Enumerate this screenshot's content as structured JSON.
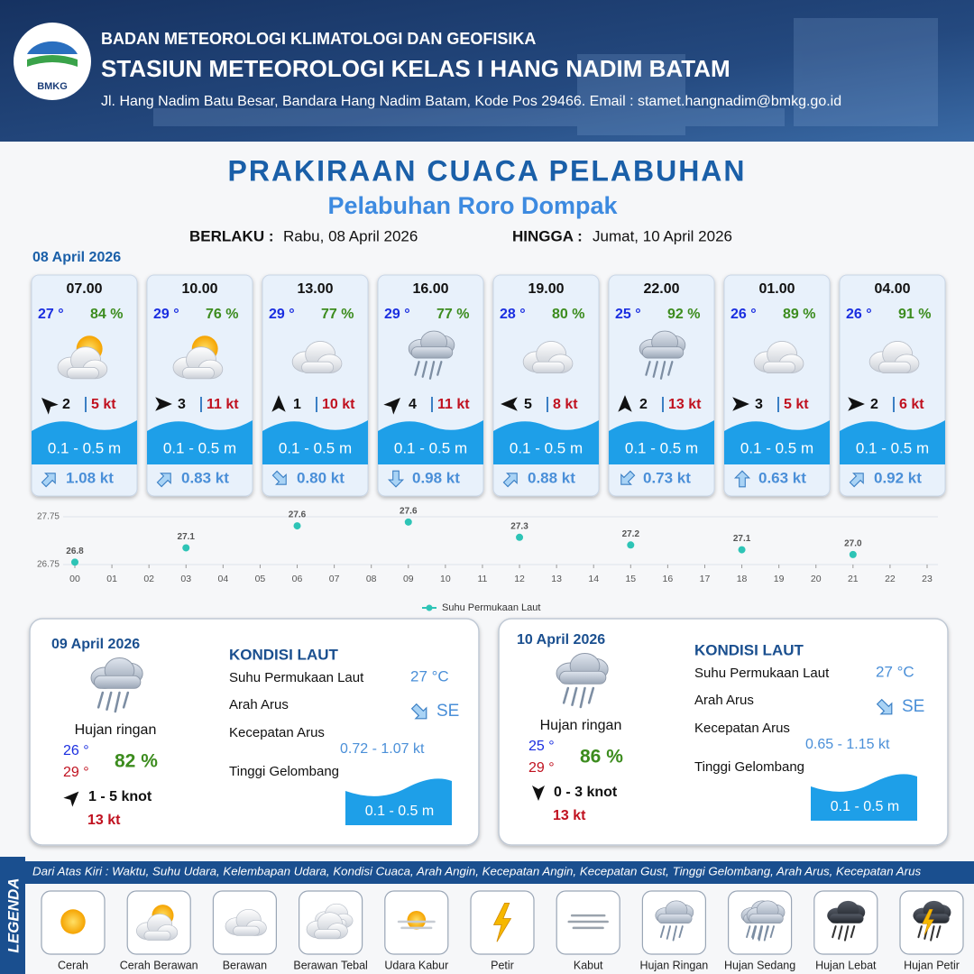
{
  "header": {
    "logo_text": "BMKG",
    "agency": "BADAN METEOROLOGI KLIMATOLOGI DAN GEOFISIKA",
    "station": "STASIUN METEOROLOGI KELAS I HANG NADIM BATAM",
    "address": "Jl. Hang Nadim Batu Besar, Bandara Hang Nadim Batam, Kode Pos 29466. Email : stamet.hangnadim@bmkg.go.id"
  },
  "title": "PRAKIRAAN CUACA PELABUHAN",
  "subtitle": "Pelabuhan Roro Dompak",
  "validity": {
    "from_label": "BERLAKU :",
    "from": "Rabu, 08 April 2026",
    "to_label": "HINGGA :",
    "to": "Jumat, 10 April 2026"
  },
  "today": "08 April 2026",
  "forecasts": [
    {
      "time": "07.00",
      "temp": "27 °",
      "humidity": "84 %",
      "wind": "2",
      "gust": "5 kt",
      "wave": "0.1 - 0.5 m",
      "current": "1.08 kt"
    },
    {
      "time": "10.00",
      "temp": "29 °",
      "humidity": "76 %",
      "wind": "3",
      "gust": "11 kt",
      "wave": "0.1 - 0.5 m",
      "current": "0.83 kt"
    },
    {
      "time": "13.00",
      "temp": "29 °",
      "humidity": "77 %",
      "wind": "1",
      "gust": "10 kt",
      "wave": "0.1 - 0.5 m",
      "current": "0.80 kt"
    },
    {
      "time": "16.00",
      "temp": "29 °",
      "humidity": "77 %",
      "wind": "4",
      "gust": "11 kt",
      "wave": "0.1 - 0.5 m",
      "current": "0.98 kt"
    },
    {
      "time": "19.00",
      "temp": "28 °",
      "humidity": "80 %",
      "wind": "5",
      "gust": "8 kt",
      "wave": "0.1 - 0.5 m",
      "current": "0.88 kt"
    },
    {
      "time": "22.00",
      "temp": "25 °",
      "humidity": "92 %",
      "wind": "2",
      "gust": "13 kt",
      "wave": "0.1 - 0.5 m",
      "current": "0.73 kt"
    },
    {
      "time": "01.00",
      "temp": "26 °",
      "humidity": "89 %",
      "wind": "3",
      "gust": "5 kt",
      "wave": "0.1 - 0.5 m",
      "current": "0.63 kt"
    },
    {
      "time": "04.00",
      "temp": "26 °",
      "humidity": "91 %",
      "wind": "2",
      "gust": "6 kt",
      "wave": "0.1 - 0.5 m",
      "current": "0.92 kt"
    }
  ],
  "chart_data": {
    "type": "scatter",
    "x": [
      0,
      3,
      6,
      9,
      12,
      15,
      18,
      21
    ],
    "series": [
      {
        "name": "Suhu Permukaan Laut",
        "color": "#2ec4b6",
        "values": [
          26.8,
          27.1,
          27.56,
          27.64,
          27.32,
          27.16,
          27.06,
          26.96
        ],
        "value_labels": [
          "26.8",
          "27.1",
          "27.6",
          "27.6",
          "27.3",
          "27.2",
          "27.1",
          "27.0"
        ]
      }
    ],
    "xlim": [
      0,
      23
    ],
    "xticks": [
      {
        "value": 0,
        "label": "00"
      },
      {
        "value": 1,
        "label": "01"
      },
      {
        "value": 2,
        "label": "02"
      },
      {
        "value": 3,
        "label": "03"
      },
      {
        "value": 4,
        "label": "04"
      },
      {
        "value": 5,
        "label": "05"
      },
      {
        "value": 6,
        "label": "06"
      },
      {
        "value": 7,
        "label": "07"
      },
      {
        "value": 8,
        "label": "08"
      },
      {
        "value": 9,
        "label": "09"
      },
      {
        "value": 10,
        "label": "10"
      },
      {
        "value": 11,
        "label": "11"
      },
      {
        "value": 12,
        "label": "12"
      },
      {
        "value": 13,
        "label": "13"
      },
      {
        "value": 14,
        "label": "14"
      },
      {
        "value": 15,
        "label": "15"
      },
      {
        "value": 16,
        "label": "16"
      },
      {
        "value": 17,
        "label": "17"
      },
      {
        "value": 18,
        "label": "18"
      },
      {
        "value": 19,
        "label": "19"
      },
      {
        "value": 20,
        "label": "20"
      },
      {
        "value": 21,
        "label": "21"
      },
      {
        "value": 22,
        "label": "22"
      },
      {
        "value": 23,
        "label": "23"
      }
    ],
    "ylim": [
      26.75,
      27.75
    ],
    "yticks": [
      26.75,
      27.75
    ],
    "grid": true
  },
  "days": [
    {
      "date": "09 April 2026",
      "condition": "Hujan ringan",
      "temp_min": "26 °",
      "temp_max": "29 °",
      "humidity": "82 %",
      "wind": "1 - 5 knot",
      "gust": "13 kt",
      "sea_title": "KONDISI LAUT",
      "sst_label": "Suhu Permukaan Laut",
      "sst": "27 °C",
      "current_dir_label": "Arah Arus",
      "current_dir": "SE",
      "current_speed_label": "Kecepatan Arus",
      "current_speed": "0.72 - 1.07 kt",
      "wave_label": "Tinggi Gelombang",
      "wave": "0.1 - 0.5 m"
    },
    {
      "date": "10 April 2026",
      "condition": "Hujan ringan",
      "temp_min": "25 °",
      "temp_max": "29 °",
      "humidity": "86 %",
      "wind": "0 - 3 knot",
      "gust": "13 kt",
      "sea_title": "KONDISI LAUT",
      "sst_label": "Suhu Permukaan Laut",
      "sst": "27 °C",
      "current_dir_label": "Arah Arus",
      "current_dir": "SE",
      "current_speed_label": "Kecepatan Arus",
      "current_speed": "0.65 - 1.15 kt",
      "wave_label": "Tinggi Gelombang",
      "wave": "0.1 - 0.5 m"
    }
  ],
  "legend": {
    "title": "LEGENDA",
    "description": "Dari Atas Kiri : Waktu, Suhu Udara, Kelembapan Udara, Kondisi Cuaca, Arah Angin, Kecepatan Angin, Kecepatan Gust, Tinggi Gelombang, Arah Arus, Kecepatan Arus",
    "items": [
      "Cerah",
      "Cerah Berawan",
      "Berawan",
      "Berawan Tebal",
      "Udara Kabur",
      "Petir",
      "Kabut",
      "Hujan Ringan",
      "Hujan Sedang",
      "Hujan Lebat",
      "Hujan Petir"
    ]
  }
}
